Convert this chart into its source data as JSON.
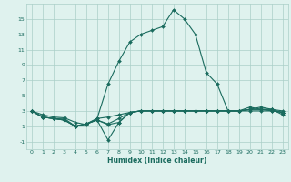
{
  "x": [
    0,
    1,
    2,
    3,
    4,
    5,
    6,
    7,
    8,
    9,
    10,
    11,
    12,
    13,
    14,
    15,
    16,
    17,
    18,
    19,
    20,
    21,
    22,
    23
  ],
  "line1": [
    3.0,
    2.5,
    2.2,
    2.1,
    1.5,
    1.2,
    2.0,
    6.5,
    9.5,
    12.0,
    13.0,
    13.5,
    14.0,
    16.2,
    15.0,
    13.0,
    8.0,
    6.5,
    3.0,
    3.0,
    3.0,
    3.0,
    3.0,
    2.8
  ],
  "line2": [
    3.0,
    2.2,
    2.0,
    2.0,
    1.0,
    1.3,
    2.0,
    2.2,
    2.5,
    2.8,
    3.0,
    3.0,
    3.0,
    3.0,
    3.0,
    3.0,
    3.0,
    3.0,
    3.0,
    3.0,
    3.2,
    3.2,
    3.0,
    2.8
  ],
  "line3": [
    3.0,
    2.2,
    2.0,
    1.8,
    1.0,
    1.3,
    1.8,
    -0.8,
    1.5,
    2.8,
    3.0,
    3.0,
    3.0,
    3.0,
    3.0,
    3.0,
    3.0,
    3.0,
    3.0,
    3.0,
    3.5,
    3.2,
    3.2,
    2.5
  ],
  "line4": [
    3.0,
    2.2,
    2.0,
    1.8,
    1.0,
    1.3,
    1.8,
    1.2,
    1.5,
    2.8,
    3.0,
    3.0,
    3.0,
    3.0,
    3.0,
    3.0,
    3.0,
    3.0,
    3.0,
    3.0,
    3.2,
    3.5,
    3.2,
    3.0
  ],
  "line5": [
    3.0,
    2.2,
    2.0,
    1.8,
    1.0,
    1.3,
    1.8,
    1.3,
    2.0,
    2.8,
    3.0,
    3.0,
    3.0,
    3.0,
    3.0,
    3.0,
    3.0,
    3.0,
    3.0,
    3.0,
    3.2,
    3.2,
    3.2,
    2.8
  ],
  "color": "#1a6b5e",
  "bg_color": "#dff2ee",
  "grid_color": "#aacfc8",
  "ylim": [
    -2.0,
    17.0
  ],
  "yticks": [
    -1,
    1,
    3,
    5,
    7,
    9,
    11,
    13,
    15
  ],
  "xticks": [
    0,
    1,
    2,
    3,
    4,
    5,
    6,
    7,
    8,
    9,
    10,
    11,
    12,
    13,
    14,
    15,
    16,
    17,
    18,
    19,
    20,
    21,
    22,
    23
  ],
  "xlabel": "Humidex (Indice chaleur)",
  "markersize": 2.0,
  "linewidth": 0.8,
  "tick_fontsize": 4.5,
  "xlabel_fontsize": 5.5
}
